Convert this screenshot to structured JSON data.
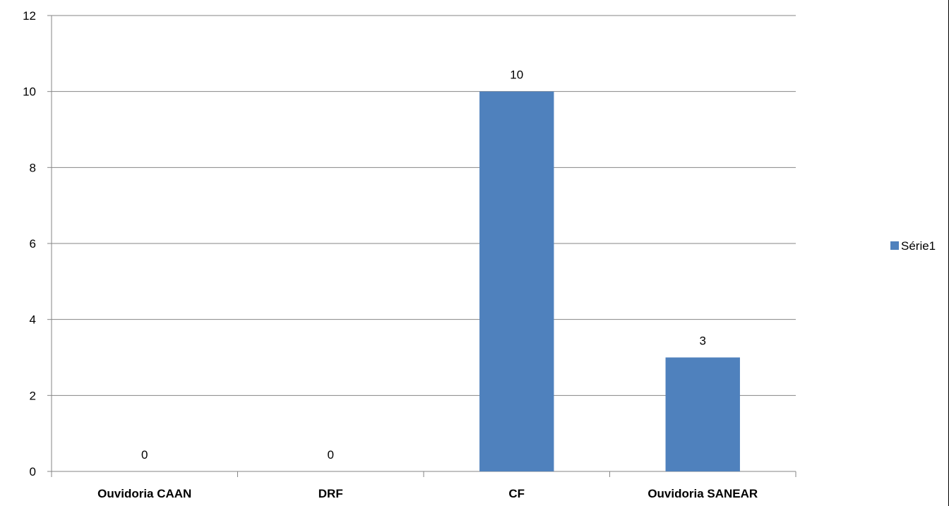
{
  "chart_data": {
    "type": "bar",
    "title": "",
    "xlabel": "",
    "ylabel": "",
    "categories": [
      "Ouvidoria CAAN",
      "DRF",
      "CF",
      "Ouvidoria SANEAR"
    ],
    "series": [
      {
        "name": "Série1",
        "values": [
          0,
          0,
          10,
          3
        ],
        "color": "#4F81BD"
      }
    ],
    "ylim": [
      0,
      12
    ],
    "yticks": [
      0,
      2,
      4,
      6,
      8,
      10,
      12
    ],
    "grid": true,
    "data_labels": true,
    "legend": {
      "position": "right"
    }
  }
}
